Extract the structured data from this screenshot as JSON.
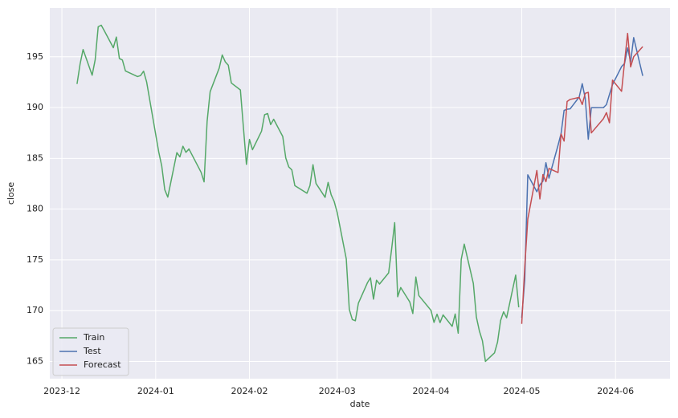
{
  "chart_data": {
    "type": "line",
    "xlabel": "date",
    "ylabel": "close",
    "xlim": [
      "2023-11-27",
      "2024-06-19"
    ],
    "xticks": [
      {
        "value": "2023-12-01",
        "label": "2023-12"
      },
      {
        "value": "2024-01-01",
        "label": "2024-01"
      },
      {
        "value": "2024-02-01",
        "label": "2024-02"
      },
      {
        "value": "2024-03-01",
        "label": "2024-03"
      },
      {
        "value": "2024-04-01",
        "label": "2024-04"
      },
      {
        "value": "2024-05-01",
        "label": "2024-05"
      },
      {
        "value": "2024-06-01",
        "label": "2024-06"
      }
    ],
    "ylim": [
      163.3,
      199.8
    ],
    "yticks": [
      165,
      170,
      175,
      180,
      185,
      190,
      195
    ],
    "grid": true,
    "legend": "lower left",
    "series": [
      {
        "name": "Train",
        "color": "#55a868",
        "x": [
          "2023-12-06",
          "2023-12-07",
          "2023-12-08",
          "2023-12-11",
          "2023-12-12",
          "2023-12-13",
          "2023-12-14",
          "2023-12-15",
          "2023-12-18",
          "2023-12-19",
          "2023-12-20",
          "2023-12-21",
          "2023-12-22",
          "2023-12-26",
          "2023-12-27",
          "2023-12-28",
          "2023-12-29",
          "2024-01-02",
          "2024-01-03",
          "2024-01-04",
          "2024-01-05",
          "2024-01-08",
          "2024-01-09",
          "2024-01-10",
          "2024-01-11",
          "2024-01-12",
          "2024-01-16",
          "2024-01-17",
          "2024-01-18",
          "2024-01-19",
          "2024-01-22",
          "2024-01-23",
          "2024-01-24",
          "2024-01-25",
          "2024-01-26",
          "2024-01-29",
          "2024-01-30",
          "2024-01-31",
          "2024-02-01",
          "2024-02-02",
          "2024-02-05",
          "2024-02-06",
          "2024-02-07",
          "2024-02-08",
          "2024-02-09",
          "2024-02-12",
          "2024-02-13",
          "2024-02-14",
          "2024-02-15",
          "2024-02-16",
          "2024-02-20",
          "2024-02-21",
          "2024-02-22",
          "2024-02-23",
          "2024-02-26",
          "2024-02-27",
          "2024-02-28",
          "2024-02-29",
          "2024-03-01",
          "2024-03-04",
          "2024-03-05",
          "2024-03-06",
          "2024-03-07",
          "2024-03-08",
          "2024-03-11",
          "2024-03-12",
          "2024-03-13",
          "2024-03-14",
          "2024-03-15",
          "2024-03-18",
          "2024-03-19",
          "2024-03-20",
          "2024-03-21",
          "2024-03-22",
          "2024-03-25",
          "2024-03-26",
          "2024-03-27",
          "2024-03-28",
          "2024-04-01",
          "2024-04-02",
          "2024-04-03",
          "2024-04-04",
          "2024-04-05",
          "2024-04-08",
          "2024-04-09",
          "2024-04-10",
          "2024-04-11",
          "2024-04-12",
          "2024-04-15",
          "2024-04-16",
          "2024-04-17",
          "2024-04-18",
          "2024-04-19",
          "2024-04-22",
          "2024-04-23",
          "2024-04-24",
          "2024-04-25",
          "2024-04-26",
          "2024-04-29",
          "2024-04-30"
        ],
        "values": [
          192.32,
          194.27,
          195.71,
          193.18,
          194.71,
          197.96,
          198.11,
          197.57,
          195.89,
          196.94,
          194.83,
          194.68,
          193.6,
          193.05,
          193.15,
          193.58,
          192.53,
          185.64,
          184.25,
          181.91,
          181.18,
          185.56,
          185.14,
          186.19,
          185.59,
          185.92,
          183.63,
          182.68,
          188.63,
          191.56,
          193.89,
          195.18,
          194.5,
          194.17,
          192.42,
          191.73,
          188.04,
          184.4,
          186.86,
          185.85,
          187.68,
          189.3,
          189.41,
          188.32,
          188.85,
          187.15,
          185.04,
          184.15,
          183.86,
          182.31,
          181.56,
          182.32,
          184.37,
          182.52,
          181.16,
          182.63,
          181.42,
          180.75,
          179.66,
          175.1,
          170.12,
          169.12,
          169.0,
          170.73,
          172.75,
          173.23,
          171.13,
          173.0,
          172.62,
          173.72,
          176.08,
          178.67,
          171.37,
          172.28,
          170.85,
          169.71,
          173.31,
          171.48,
          170.03,
          168.84,
          169.65,
          168.82,
          169.58,
          168.45,
          169.67,
          167.78,
          175.04,
          176.55,
          172.69,
          169.38,
          168.0,
          167.04,
          165.0,
          165.84,
          166.9,
          169.02,
          169.89,
          169.3,
          173.5,
          170.33
        ]
      },
      {
        "name": "Test",
        "color": "#4c72b0",
        "x": [
          "2024-05-01",
          "2024-05-02",
          "2024-05-03",
          "2024-05-06",
          "2024-05-07",
          "2024-05-08",
          "2024-05-09",
          "2024-05-10",
          "2024-05-13",
          "2024-05-14",
          "2024-05-15",
          "2024-05-16",
          "2024-05-17",
          "2024-05-20",
          "2024-05-21",
          "2024-05-22",
          "2024-05-23",
          "2024-05-24",
          "2024-05-28",
          "2024-05-29",
          "2024-05-30",
          "2024-05-31",
          "2024-06-03",
          "2024-06-04",
          "2024-06-05",
          "2024-06-06",
          "2024-06-07",
          "2024-06-10"
        ],
        "values": [
          169.3,
          173.03,
          183.38,
          181.71,
          182.4,
          182.74,
          184.57,
          183.05,
          186.28,
          187.43,
          189.72,
          189.84,
          189.87,
          191.04,
          192.35,
          190.9,
          186.88,
          189.98,
          189.99,
          190.29,
          191.29,
          192.25,
          194.03,
          194.35,
          195.87,
          194.48,
          196.89,
          193.12
        ]
      },
      {
        "name": "Forecast",
        "color": "#c44e52",
        "x": [
          "2024-05-01",
          "2024-05-02",
          "2024-05-03",
          "2024-05-06",
          "2024-05-07",
          "2024-05-08",
          "2024-05-09",
          "2024-05-10",
          "2024-05-13",
          "2024-05-14",
          "2024-05-15",
          "2024-05-16",
          "2024-05-17",
          "2024-05-20",
          "2024-05-21",
          "2024-05-22",
          "2024-05-23",
          "2024-05-24",
          "2024-05-28",
          "2024-05-29",
          "2024-05-30",
          "2024-05-31",
          "2024-06-03",
          "2024-06-04",
          "2024-06-05",
          "2024-06-06",
          "2024-06-07",
          "2024-06-10"
        ],
        "values": [
          168.7,
          174.3,
          179.0,
          183.8,
          181.0,
          183.4,
          182.7,
          184.0,
          183.6,
          187.4,
          186.7,
          190.6,
          190.8,
          191.0,
          190.3,
          191.4,
          191.5,
          187.5,
          188.9,
          189.5,
          188.5,
          192.7,
          191.6,
          194.5,
          197.3,
          194.0,
          195.0,
          196.0
        ]
      }
    ]
  }
}
